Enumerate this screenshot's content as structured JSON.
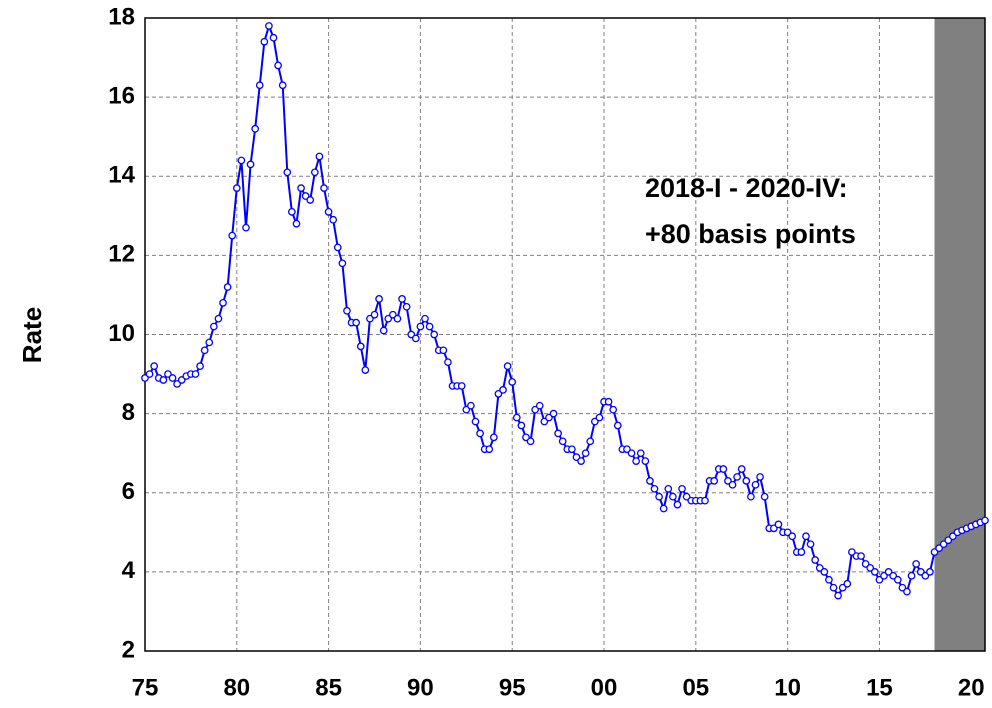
{
  "chart_data": {
    "type": "line",
    "y_label": "Rate",
    "annotations": [
      "2018-I - 2020-IV:",
      "+80 basis points"
    ],
    "xlim": [
      1975,
      2020.75
    ],
    "ylim": [
      2,
      18
    ],
    "yticks": [
      2,
      4,
      6,
      8,
      10,
      12,
      14,
      16,
      18
    ],
    "xticks": [
      {
        "value": 1975,
        "label": "75"
      },
      {
        "value": 1980,
        "label": "80"
      },
      {
        "value": 1985,
        "label": "85"
      },
      {
        "value": 1990,
        "label": "90"
      },
      {
        "value": 1995,
        "label": "95"
      },
      {
        "value": 2000,
        "label": "00"
      },
      {
        "value": 2005,
        "label": "05"
      },
      {
        "value": 2010,
        "label": "10"
      },
      {
        "value": 2015,
        "label": "15"
      },
      {
        "value": 2020,
        "label": "20"
      }
    ],
    "grid": true,
    "shade": {
      "x": [
        2018,
        2020.75
      ],
      "color": "#808080"
    },
    "x": [
      1975,
      1975.25,
      1975.5,
      1975.75,
      1976,
      1976.25,
      1976.5,
      1976.75,
      1977,
      1977.25,
      1977.5,
      1977.75,
      1978,
      1978.25,
      1978.5,
      1978.75,
      1979,
      1979.25,
      1979.5,
      1979.75,
      1980,
      1980.25,
      1980.5,
      1980.75,
      1981,
      1981.25,
      1981.5,
      1981.75,
      1982,
      1982.25,
      1982.5,
      1982.75,
      1983,
      1983.25,
      1983.5,
      1983.75,
      1984,
      1984.25,
      1984.5,
      1984.75,
      1985,
      1985.25,
      1985.5,
      1985.75,
      1986,
      1986.25,
      1986.5,
      1986.75,
      1987,
      1987.25,
      1987.5,
      1987.75,
      1988,
      1988.25,
      1988.5,
      1988.75,
      1989,
      1989.25,
      1989.5,
      1989.75,
      1990,
      1990.25,
      1990.5,
      1990.75,
      1991,
      1991.25,
      1991.5,
      1991.75,
      1992,
      1992.25,
      1992.5,
      1992.75,
      1993,
      1993.25,
      1993.5,
      1993.75,
      1994,
      1994.25,
      1994.5,
      1994.75,
      1995,
      1995.25,
      1995.5,
      1995.75,
      1996,
      1996.25,
      1996.5,
      1996.75,
      1997,
      1997.25,
      1997.5,
      1997.75,
      1998,
      1998.25,
      1998.5,
      1998.75,
      1999,
      1999.25,
      1999.5,
      1999.75,
      2000,
      2000.25,
      2000.5,
      2000.75,
      2001,
      2001.25,
      2001.5,
      2001.75,
      2002,
      2002.25,
      2002.5,
      2002.75,
      2003,
      2003.25,
      2003.5,
      2003.75,
      2004,
      2004.25,
      2004.5,
      2004.75,
      2005,
      2005.25,
      2005.5,
      2005.75,
      2006,
      2006.25,
      2006.5,
      2006.75,
      2007,
      2007.25,
      2007.5,
      2007.75,
      2008,
      2008.25,
      2008.5,
      2008.75,
      2009,
      2009.25,
      2009.5,
      2009.75,
      2010,
      2010.25,
      2010.5,
      2010.75,
      2011,
      2011.25,
      2011.5,
      2011.75,
      2012,
      2012.25,
      2012.5,
      2012.75,
      2013,
      2013.25,
      2013.5,
      2013.75,
      2014,
      2014.25,
      2014.5,
      2014.75,
      2015,
      2015.25,
      2015.5,
      2015.75,
      2016,
      2016.25,
      2016.5,
      2016.75,
      2017,
      2017.25,
      2017.5,
      2017.75,
      2018,
      2018.25,
      2018.5,
      2018.75,
      2019,
      2019.25,
      2019.5,
      2019.75,
      2020,
      2020.25,
      2020.5,
      2020.75
    ],
    "series": [
      {
        "name": "Rate",
        "color": "#0000ff",
        "values": [
          8.9,
          9.0,
          9.2,
          8.9,
          8.85,
          9.0,
          8.9,
          8.75,
          8.85,
          8.95,
          9.0,
          9.0,
          9.2,
          9.6,
          9.8,
          10.2,
          10.4,
          10.8,
          11.2,
          12.5,
          13.7,
          14.4,
          12.7,
          14.3,
          15.2,
          16.3,
          17.4,
          17.8,
          17.5,
          16.8,
          16.3,
          14.1,
          13.1,
          12.8,
          13.7,
          13.5,
          13.4,
          14.1,
          14.5,
          13.7,
          13.1,
          12.9,
          12.2,
          11.8,
          10.6,
          10.3,
          10.3,
          9.7,
          9.1,
          10.4,
          10.5,
          10.9,
          10.1,
          10.4,
          10.5,
          10.4,
          10.9,
          10.7,
          10.0,
          9.9,
          10.2,
          10.4,
          10.2,
          10.0,
          9.6,
          9.6,
          9.3,
          8.7,
          8.7,
          8.7,
          8.1,
          8.2,
          7.8,
          7.5,
          7.1,
          7.1,
          7.4,
          8.5,
          8.6,
          9.2,
          8.8,
          7.9,
          7.7,
          7.4,
          7.3,
          8.1,
          8.2,
          7.8,
          7.9,
          8.0,
          7.5,
          7.3,
          7.1,
          7.1,
          6.9,
          6.8,
          7.0,
          7.3,
          7.8,
          7.9,
          8.3,
          8.3,
          8.1,
          7.7,
          7.1,
          7.1,
          7.0,
          6.8,
          7.0,
          6.8,
          6.3,
          6.1,
          5.9,
          5.6,
          6.1,
          5.9,
          5.7,
          6.1,
          5.9,
          5.8,
          5.8,
          5.8,
          5.8,
          6.3,
          6.3,
          6.6,
          6.6,
          6.3,
          6.2,
          6.4,
          6.6,
          6.3,
          5.9,
          6.2,
          6.4,
          5.9,
          5.1,
          5.1,
          5.2,
          5.0,
          5.0,
          4.9,
          4.5,
          4.5,
          4.9,
          4.7,
          4.3,
          4.1,
          4.0,
          3.8,
          3.6,
          3.4,
          3.6,
          3.7,
          4.5,
          4.4,
          4.4,
          4.2,
          4.1,
          4.0,
          3.8,
          3.9,
          4.0,
          3.9,
          3.8,
          3.6,
          3.5,
          3.9,
          4.2,
          4.0,
          3.9,
          4.0,
          4.5,
          4.6,
          4.7,
          4.8,
          4.9,
          5.0,
          5.05,
          5.1,
          5.15,
          5.2,
          5.25,
          5.3
        ]
      }
    ]
  }
}
